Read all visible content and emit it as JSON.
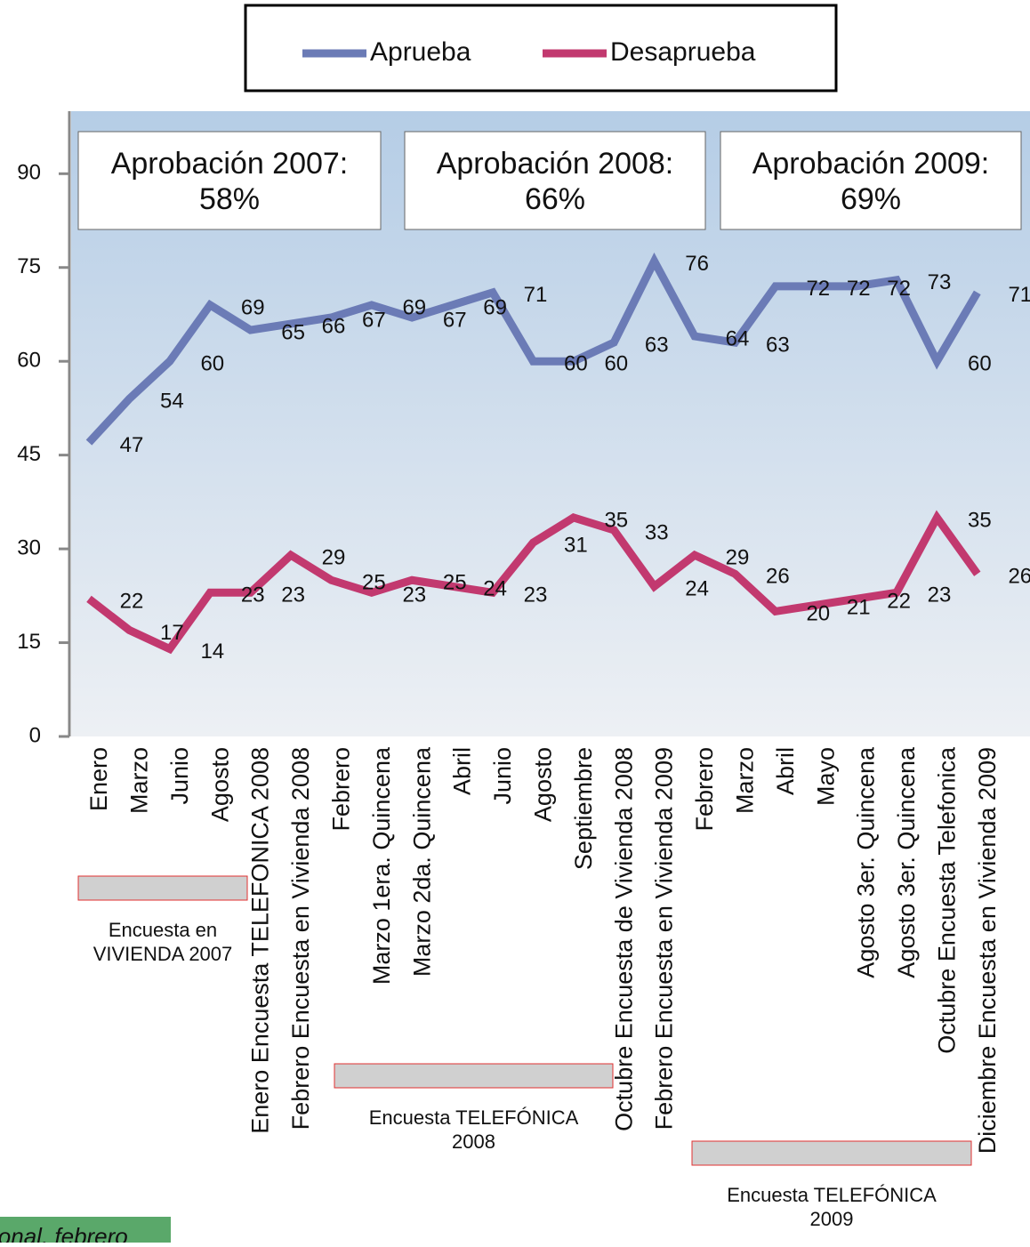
{
  "chart_data": {
    "type": "line",
    "categories": [
      "Enero",
      "Marzo",
      "Junio",
      "Agosto",
      "Enero Encuesta TELEFONICA 2008",
      "Febrero Encuesta en Vivienda 2008",
      "Febrero",
      "Marzo 1era. Quincena",
      "Marzo 2da. Quincena",
      "Abril",
      "Junio",
      "Agosto",
      "Septiembre",
      "Octubre Encuesta de Vivienda 2008",
      "Febrero Encuesta en Vivienda 2009",
      "Febrero",
      "Marzo",
      "Abril",
      "Mayo",
      "Agosto 3er. Quincena",
      "Agosto 3er. Quincena",
      "Octubre Encuesta Telefonica",
      "Diciembre Encuesta en Vivienda 2009"
    ],
    "series": [
      {
        "name": "Aprueba",
        "color": "#6b7bb6",
        "values": [
          47,
          54,
          60,
          69,
          65,
          66,
          67,
          69,
          67,
          69,
          71,
          60,
          60,
          63,
          76,
          64,
          63,
          72,
          72,
          72,
          73,
          60,
          71
        ]
      },
      {
        "name": "Desaprueba",
        "color": "#c2396f",
        "values": [
          22,
          17,
          14,
          23,
          23,
          29,
          25,
          23,
          25,
          24,
          23,
          31,
          35,
          33,
          24,
          29,
          26,
          20,
          21,
          22,
          23,
          35,
          26
        ]
      }
    ],
    "ylim": [
      0,
      100
    ],
    "yticks": [
      0,
      15,
      30,
      45,
      60,
      75,
      90
    ],
    "legend": "top",
    "annotations": [
      [
        "Aprobación 2007:",
        "58%"
      ],
      [
        "Aprobación 2008:",
        "66%"
      ],
      [
        "Aprobación 2009:",
        "69%"
      ]
    ],
    "notes": [
      [
        "Encuesta en",
        "VIVIENDA 2007"
      ],
      [
        "Encuesta TELEFÓNICA",
        "2008"
      ],
      [
        "Encuesta TELEFÓNICA",
        "2009"
      ]
    ],
    "footer": "ional, febrero"
  }
}
